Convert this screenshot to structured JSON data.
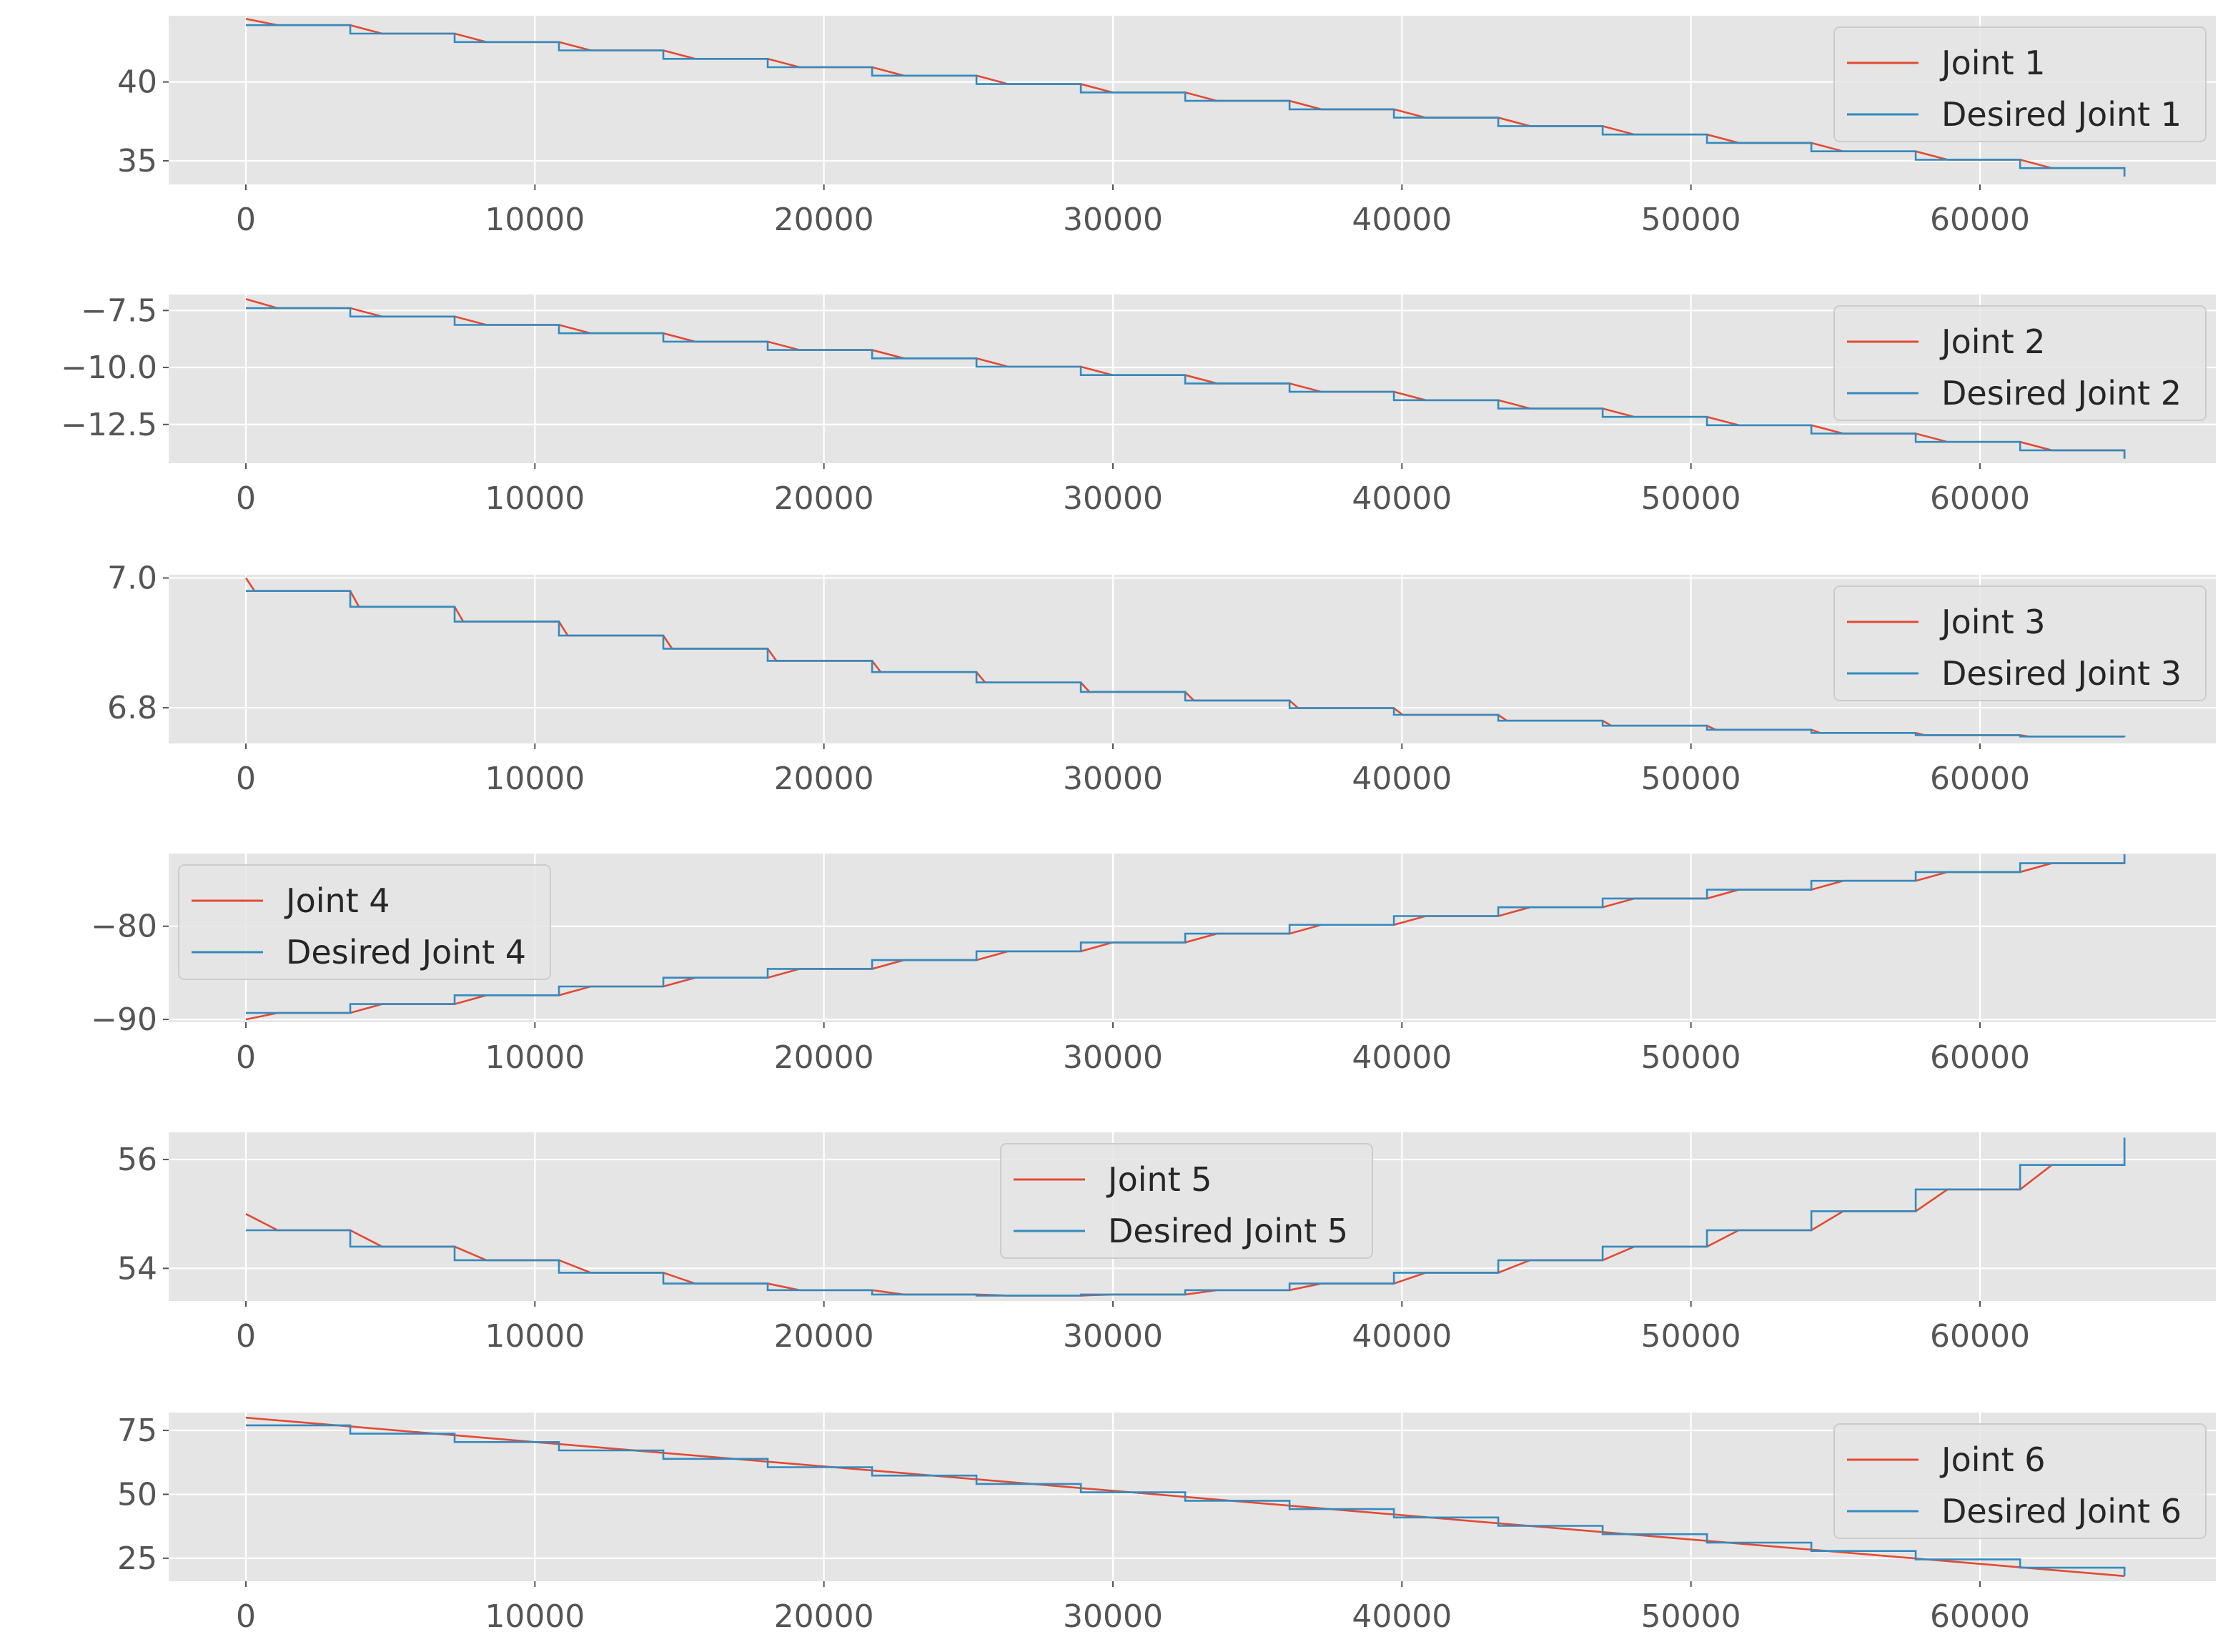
{
  "colors": {
    "joint": "#E24A33",
    "desired": "#348ABD",
    "axes_bg": "#E5E5E5",
    "grid": "#FFFFFF",
    "tick_text": "#555555",
    "legend_bg": "#E5E5E5",
    "legend_border": "#CCCCCC"
  },
  "chart_data": [
    {
      "type": "line",
      "x": {
        "min": 0,
        "max": 65000,
        "step": 3450
      },
      "xticks": [
        0,
        10000,
        20000,
        30000,
        40000,
        50000,
        60000
      ],
      "xtick_labels": [
        "0",
        "10000",
        "20000",
        "30000",
        "40000",
        "50000",
        "60000"
      ],
      "ylim": [
        33.5,
        44.2
      ],
      "yticks": [
        35,
        40
      ],
      "ytick_labels": [
        "35",
        "40"
      ],
      "grid": true,
      "legend_position": "upper right",
      "series": [
        {
          "name": "Joint 1",
          "kind": "actual",
          "start": 44.0,
          "end": 34.0,
          "lag": 1100
        },
        {
          "name": "Desired Joint 1",
          "kind": "desired",
          "start": 43.6,
          "end": 34.0
        }
      ]
    },
    {
      "type": "line",
      "x": {
        "min": 0,
        "max": 65000,
        "step": 3450
      },
      "xticks": [
        0,
        10000,
        20000,
        30000,
        40000,
        50000,
        60000
      ],
      "xtick_labels": [
        "0",
        "10000",
        "20000",
        "30000",
        "40000",
        "50000",
        "60000"
      ],
      "ylim": [
        -14.2,
        -6.8
      ],
      "yticks": [
        -7.5,
        -10.0,
        -12.5
      ],
      "ytick_labels": [
        "−7.5",
        "−10.0",
        "−12.5"
      ],
      "grid": true,
      "legend_position": "upper right",
      "series": [
        {
          "name": "Joint 2",
          "kind": "actual",
          "start": -7.0,
          "end": -14.0,
          "lag": 1100
        },
        {
          "name": "Desired Joint 2",
          "kind": "desired",
          "start": -7.4,
          "end": -14.0
        }
      ]
    },
    {
      "type": "line",
      "x": {
        "min": 0,
        "max": 65000,
        "step": 3450
      },
      "xticks": [
        0,
        10000,
        20000,
        30000,
        40000,
        50000,
        60000
      ],
      "xtick_labels": [
        "0",
        "10000",
        "20000",
        "30000",
        "40000",
        "50000",
        "60000"
      ],
      "ylim": [
        6.745,
        7.005
      ],
      "yticks": [
        7.0,
        6.8
      ],
      "ytick_labels": [
        "7.0",
        "6.8"
      ],
      "grid": true,
      "legend_position": "upper right",
      "series": [
        {
          "name": "Joint 3",
          "kind": "actual",
          "start": 7.0,
          "end": 6.755,
          "lag": 300
        },
        {
          "name": "Desired Joint 3",
          "kind": "desired",
          "start": 6.98,
          "end": 6.755,
          "curve": "ease-out"
        }
      ]
    },
    {
      "type": "line",
      "x": {
        "min": 0,
        "max": 65000,
        "step": 3450
      },
      "xticks": [
        0,
        10000,
        20000,
        30000,
        40000,
        50000,
        60000
      ],
      "xtick_labels": [
        "0",
        "10000",
        "20000",
        "30000",
        "40000",
        "50000",
        "60000"
      ],
      "ylim": [
        -90.3,
        -72.2
      ],
      "yticks": [
        -80,
        -90
      ],
      "ytick_labels": [
        "−80",
        "−90"
      ],
      "grid": true,
      "legend_position": "upper left",
      "series": [
        {
          "name": "Joint 4",
          "kind": "actual",
          "start": -90.0,
          "end": -72.3,
          "lag": 1100
        },
        {
          "name": "Desired Joint 4",
          "kind": "desired",
          "start": -89.3,
          "end": -72.3
        }
      ]
    },
    {
      "type": "line",
      "x": {
        "min": 0,
        "max": 65000,
        "step": 3450
      },
      "xticks": [
        0,
        10000,
        20000,
        30000,
        40000,
        50000,
        60000
      ],
      "xtick_labels": [
        "0",
        "10000",
        "20000",
        "30000",
        "40000",
        "50000",
        "60000"
      ],
      "ylim": [
        53.4,
        56.5
      ],
      "yticks": [
        56,
        54
      ],
      "ytick_labels": [
        "56",
        "54"
      ],
      "grid": true,
      "legend_position": "upper center",
      "series": [
        {
          "name": "Joint 5",
          "kind": "actual",
          "start": 55.0,
          "end": 56.4,
          "lag": 1100
        },
        {
          "name": "Desired Joint 5",
          "kind": "desired",
          "levels": [
            54.7,
            54.4,
            54.15,
            53.92,
            53.72,
            53.6,
            53.52,
            53.5,
            53.52,
            53.6,
            53.72,
            53.92,
            54.15,
            54.4,
            54.7,
            55.05,
            55.45,
            55.9,
            56.4
          ]
        }
      ]
    },
    {
      "type": "line",
      "x": {
        "min": 0,
        "max": 65000,
        "step": 3450
      },
      "xticks": [
        0,
        10000,
        20000,
        30000,
        40000,
        50000,
        60000
      ],
      "xtick_labels": [
        "0",
        "10000",
        "20000",
        "30000",
        "40000",
        "50000",
        "60000"
      ],
      "ylim": [
        16,
        82
      ],
      "yticks": [
        75,
        50,
        25
      ],
      "ytick_labels": [
        "75",
        "50",
        "25"
      ],
      "grid": true,
      "legend_position": "upper right",
      "series": [
        {
          "name": "Joint 6",
          "kind": "actual",
          "start": 80.0,
          "end": 18.0,
          "lag": 0,
          "curve": "linear"
        },
        {
          "name": "Desired Joint 6",
          "kind": "desired",
          "start": 77.0,
          "end": 18.0
        }
      ]
    }
  ]
}
